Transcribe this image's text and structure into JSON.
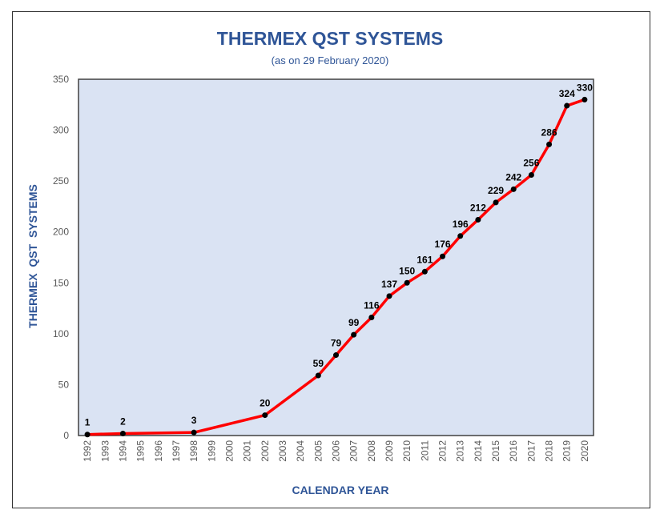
{
  "chart_data": {
    "type": "line",
    "title": "THERMEX QST SYSTEMS",
    "subtitle": "(as on 29  February 2020)",
    "xlabel": "CALENDAR YEAR",
    "ylabel": "THERMEX  QST  SYSTEMS",
    "ylim": [
      0,
      350
    ],
    "yticks": [
      0,
      50,
      100,
      150,
      200,
      250,
      300,
      350
    ],
    "categories": [
      "1992",
      "1993",
      "1994",
      "1995",
      "1996",
      "1997",
      "1998",
      "1999",
      "2000",
      "2001",
      "2002",
      "2003",
      "2004",
      "2005",
      "2006",
      "2007",
      "2008",
      "2009",
      "2010",
      "2011",
      "2012",
      "2013",
      "2014",
      "2015",
      "2016",
      "2017",
      "2018",
      "2019",
      "2020"
    ],
    "series": [
      {
        "name": "THERMEX QST SYSTEMS",
        "points": [
          {
            "x": "1992",
            "y": 1
          },
          {
            "x": "1994",
            "y": 2
          },
          {
            "x": "1998",
            "y": 3
          },
          {
            "x": "2002",
            "y": 20
          },
          {
            "x": "2005",
            "y": 59
          },
          {
            "x": "2006",
            "y": 79
          },
          {
            "x": "2007",
            "y": 99
          },
          {
            "x": "2008",
            "y": 116
          },
          {
            "x": "2009",
            "y": 137
          },
          {
            "x": "2010",
            "y": 150
          },
          {
            "x": "2011",
            "y": 161
          },
          {
            "x": "2012",
            "y": 176
          },
          {
            "x": "2013",
            "y": 196
          },
          {
            "x": "2014",
            "y": 212
          },
          {
            "x": "2015",
            "y": 229
          },
          {
            "x": "2016",
            "y": 242
          },
          {
            "x": "2017",
            "y": 256
          },
          {
            "x": "2018",
            "y": 286
          },
          {
            "x": "2019",
            "y": 324
          },
          {
            "x": "2020",
            "y": 330
          }
        ]
      }
    ],
    "grid": false,
    "legend": "none",
    "colors": {
      "line": "#FF0000",
      "marker": "#000000",
      "plot_bg": "#DAE3F3",
      "title": "#2F5597",
      "axis_text": "#595959"
    }
  }
}
